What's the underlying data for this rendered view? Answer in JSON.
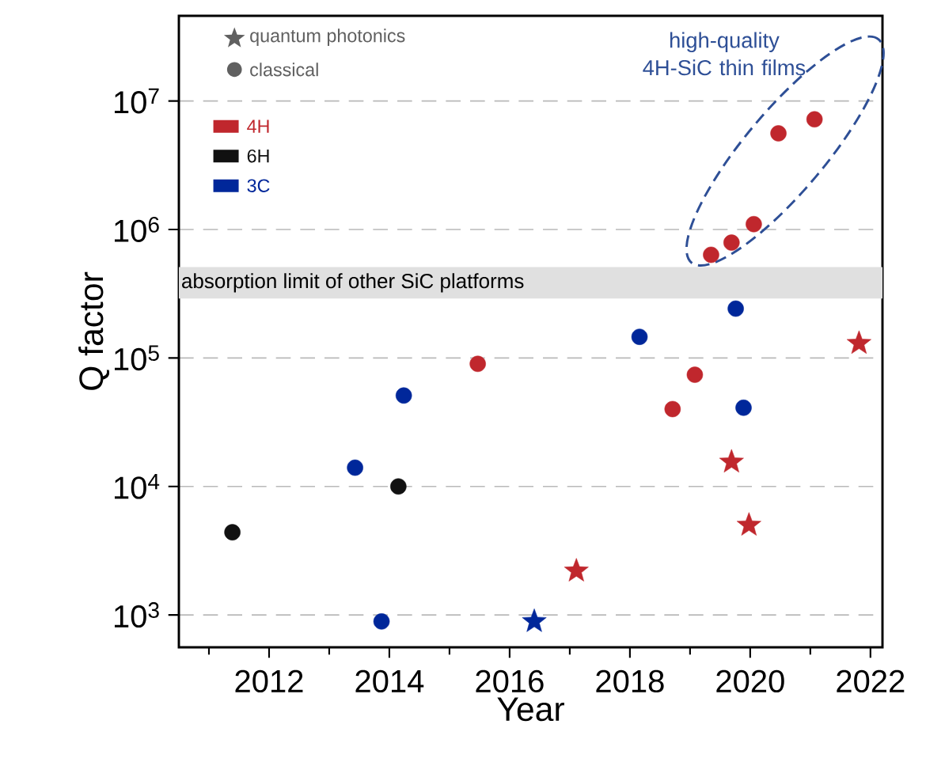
{
  "chart_data": {
    "type": "scatter",
    "xlabel": "Year",
    "ylabel": "Q factor",
    "log": "y",
    "grid": "y",
    "legend": "top left",
    "xlim": [
      2010.5,
      2022.2
    ],
    "ylim": [
      560,
      46000000
    ],
    "xticks": [
      2012,
      2014,
      2016,
      2018,
      2020,
      2022,
      {
        "value": 2011,
        "label": null
      },
      {
        "value": 2013,
        "label": null
      },
      {
        "value": 2015,
        "label": null
      },
      {
        "value": 2017,
        "label": null
      },
      {
        "value": 2019,
        "label": null
      },
      {
        "value": 2021,
        "label": null
      }
    ],
    "yticks": [
      {
        "value": 1000,
        "label": "10$^{3}$"
      },
      {
        "value": 10000,
        "label": "10$^{4}$"
      },
      {
        "value": 100000,
        "label": "10$^{5}$"
      },
      {
        "value": 1000000,
        "label": "10$^{6}$"
      },
      {
        "value": 10000000,
        "label": "10$^{7}$"
      }
    ],
    "series": [
      {
        "name": "4H",
        "color": "#c0272d",
        "marker": "circle",
        "x": [
          2015.47,
          2018.71,
          2019.08,
          2019.35,
          2019.69,
          2020.06,
          2020.47,
          2021.07
        ],
        "values": [
          90000,
          40000,
          74000,
          635000,
          790000,
          1100000,
          5600000,
          7200000
        ]
      },
      {
        "color": "#c0272d",
        "marker": "star",
        "x": [
          2017.11,
          2019.69,
          2019.98,
          2021.81
        ],
        "values": [
          2200,
          15500,
          5000,
          130000
        ]
      },
      {
        "name": "6H",
        "color": "#111111",
        "marker": "circle",
        "x": [
          2011.39,
          2014.15
        ],
        "values": [
          4400,
          10000
        ]
      },
      {
        "name": "3C",
        "color": "#00279a",
        "marker": "circle",
        "x": [
          2013.43,
          2013.87,
          2014.24,
          2018.16,
          2019.76,
          2019.89
        ],
        "values": [
          14000,
          890,
          51000,
          146000,
          242000,
          41000
        ]
      },
      {
        "color": "#00279a",
        "marker": "star",
        "x": [
          2016.41
        ],
        "values": [
          890
        ]
      }
    ],
    "bands": [
      {
        "axis": "y",
        "from": 290000,
        "to": 510000,
        "label": "absorption limit of other SiC platforms",
        "color": "#e0e0e0"
      }
    ],
    "annotations": [
      "quantum photonics",
      "classical",
      "high-quality 4H-SiC thin films"
    ]
  }
}
